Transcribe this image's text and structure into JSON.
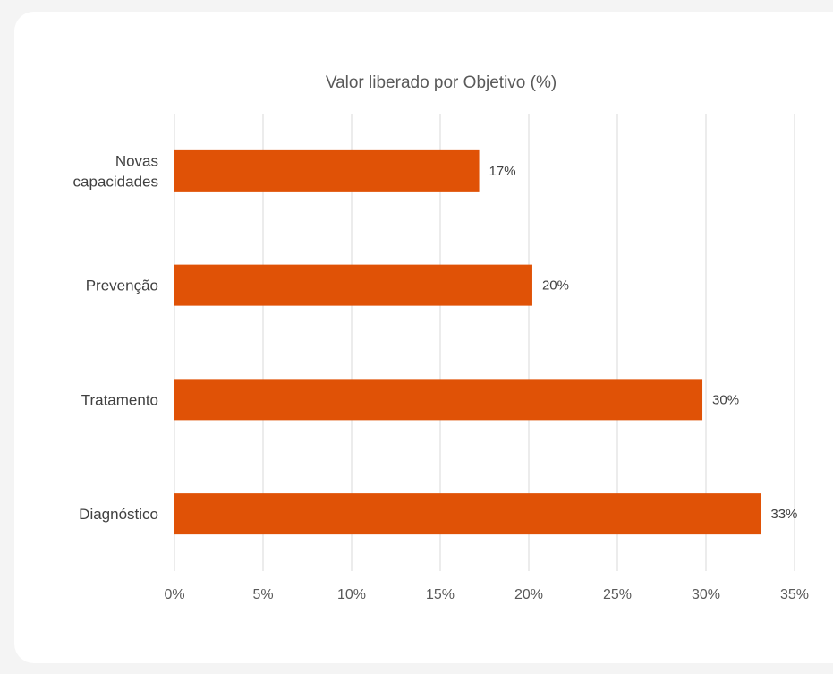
{
  "chart_data": {
    "type": "bar",
    "orientation": "horizontal",
    "title": "Valor liberado por Objetivo (%)",
    "categories": [
      [
        "Novas",
        "capacidades"
      ],
      [
        "Prevenção"
      ],
      [
        "Tratamento"
      ],
      [
        "Diagnóstico"
      ]
    ],
    "values": [
      17.2,
      20.2,
      29.8,
      33.1
    ],
    "data_labels": [
      "17%",
      "20%",
      "30%",
      "33%"
    ],
    "xlim": [
      0,
      35
    ],
    "xticks": [
      0,
      5,
      10,
      15,
      20,
      25,
      30,
      35
    ],
    "xtick_labels": [
      "0%",
      "5%",
      "10%",
      "15%",
      "20%",
      "25%",
      "30%",
      "35%"
    ],
    "xlabel": "",
    "ylabel": "",
    "grid": "vertical",
    "legend": "none",
    "colors": {
      "bar": "#e05206",
      "grid": "#d9d9d9",
      "background": "#ffffff"
    }
  }
}
